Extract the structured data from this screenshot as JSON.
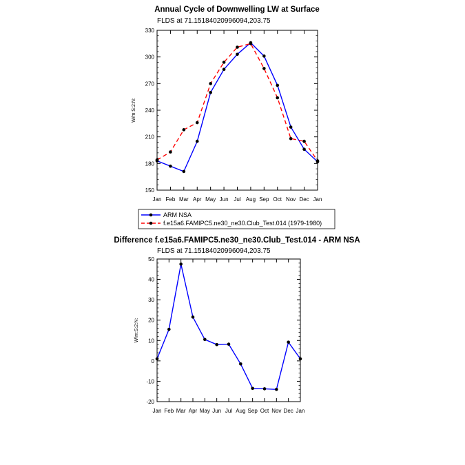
{
  "chart_data": [
    {
      "type": "line",
      "title": "Annual Cycle of Downwelling LW at Surface",
      "subtitle": "FLDS at 71.15184020996094,203.75",
      "ylabel": "W/m:S:2:N:",
      "xlabel": "",
      "categories": [
        "Jan",
        "Feb",
        "Mar",
        "Apr",
        "May",
        "Jun",
        "Jul",
        "Aug",
        "Sep",
        "Oct",
        "Nov",
        "Dec",
        "Jan"
      ],
      "ylim": [
        150,
        330
      ],
      "yticks": [
        150,
        180,
        210,
        240,
        270,
        300,
        330
      ],
      "series": [
        {
          "name": "ARM NSA",
          "color": "#0000ff",
          "dash": "solid",
          "values": [
            183,
            177,
            171,
            205,
            260,
            286,
            303,
            316,
            301,
            268,
            221,
            196,
            182
          ]
        },
        {
          "name": "f.e15a6.FAMIPC5.ne30_ne30.Club_Test.014 (1979-1980)",
          "color": "#ff0000",
          "dash": "dashed",
          "values": [
            184,
            193,
            218,
            226,
            270,
            294,
            311,
            315,
            287,
            254,
            208,
            205,
            183
          ]
        }
      ],
      "legend": "bottom"
    },
    {
      "type": "line",
      "title": "Difference f.e15a6.FAMIPC5.ne30_ne30.Club_Test.014 - ARM NSA",
      "subtitle": "FLDS at 71.15184020996094,203.75",
      "ylabel": "W/m:S:2:N:",
      "xlabel": "",
      "categories": [
        "Jan",
        "Feb",
        "Mar",
        "Apr",
        "May",
        "Jun",
        "Jul",
        "Aug",
        "Sep",
        "Oct",
        "Nov",
        "Dec",
        "Jan"
      ],
      "ylim": [
        -20,
        50
      ],
      "yticks": [
        -20,
        -10,
        0,
        10,
        20,
        30,
        40,
        50
      ],
      "series": [
        {
          "name": "Difference",
          "color": "#0000ff",
          "dash": "solid",
          "values": [
            1,
            15.5,
            47.5,
            21.5,
            10.5,
            8,
            8.2,
            -1.5,
            -13.5,
            -13.7,
            -14,
            9.2,
            1
          ]
        }
      ]
    }
  ]
}
